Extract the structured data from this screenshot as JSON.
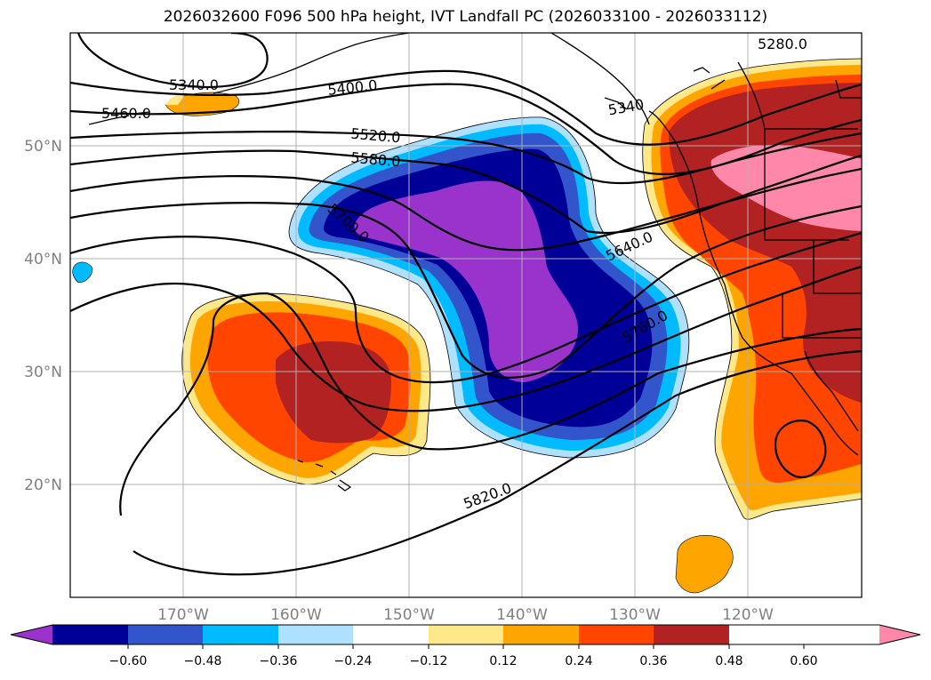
{
  "title": "2026032600 F096 500 hPa height, IVT Landfall PC (2026033100 - 2026033112)",
  "map": {
    "lon_range": [
      -180,
      -110
    ],
    "lat_range": [
      10,
      60
    ],
    "lon_ticks": [
      "170°W",
      "160°W",
      "150°W",
      "140°W",
      "130°W",
      "120°W"
    ],
    "lat_ticks": [
      "50°N",
      "40°N",
      "30°N",
      "20°N"
    ],
    "gridlines": true,
    "coastlines": true
  },
  "colors": {
    "levels": [
      {
        "color": "#9933cc"
      },
      {
        "color": "#000099"
      },
      {
        "color": "#3355cc"
      },
      {
        "color": "#00bbff"
      },
      {
        "color": "#aee0ff"
      },
      {
        "color": "#ffffff"
      },
      {
        "color": "#ffe88a"
      },
      {
        "color": "#ffa500"
      },
      {
        "color": "#ff4500"
      },
      {
        "color": "#b22222"
      },
      {
        "color": "#ff88aa"
      }
    ]
  },
  "contour_labels": [
    "5280.0",
    "5340.0",
    "5400.0",
    "5460.0",
    "5520.0",
    "5580.0",
    "5640.0",
    "5700.0",
    "5760.0",
    "5820.0",
    "5340"
  ],
  "colorbar": {
    "tick_labels": [
      "−0.60",
      "−0.48",
      "−0.36",
      "−0.24",
      "−0.12",
      "0.12",
      "0.24",
      "0.36",
      "0.48",
      "0.60"
    ],
    "extend": "both"
  }
}
